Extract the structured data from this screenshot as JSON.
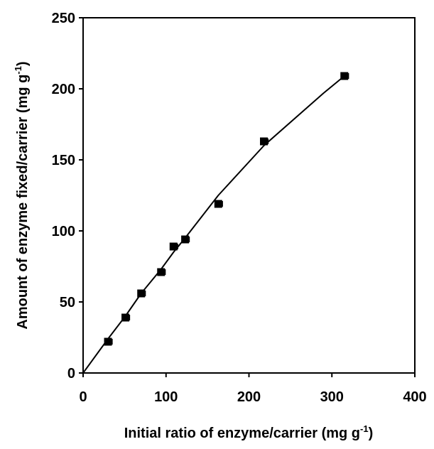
{
  "chart_data": {
    "type": "scatter",
    "xlabel": {
      "main": "Initial ratio of enzyme/carrier (mg g",
      "superscript": "-1",
      "close": ")"
    },
    "ylabel": {
      "main": "Amount of enzyme fixed/carrier (mg g",
      "superscript": "-1",
      "close": ")"
    },
    "xlim": [
      0,
      400
    ],
    "ylim": [
      0,
      250
    ],
    "xticks": [
      0,
      100,
      200,
      300,
      400
    ],
    "yticks": [
      0,
      50,
      100,
      150,
      200,
      250
    ],
    "grid": false,
    "legend": "none",
    "series": [
      {
        "marker": "filled-square",
        "points": [
          {
            "x": 30,
            "y": 22,
            "xerr": 5
          },
          {
            "x": 51,
            "y": 39,
            "xerr": 5
          },
          {
            "x": 70,
            "y": 56,
            "xerr": 5
          },
          {
            "x": 94,
            "y": 71,
            "xerr": 5
          },
          {
            "x": 109,
            "y": 89,
            "xerr": 5
          },
          {
            "x": 123,
            "y": 94,
            "xerr": 5
          },
          {
            "x": 163,
            "y": 119,
            "xerr": 5
          },
          {
            "x": 218,
            "y": 163,
            "xerr": 5
          },
          {
            "x": 315,
            "y": 209,
            "xerr": 5
          }
        ]
      }
    ],
    "trend_line": {
      "x": [
        0,
        30,
        51,
        70,
        94,
        109,
        123,
        163,
        218,
        290,
        315
      ],
      "y": [
        0,
        24,
        40,
        56,
        73,
        85,
        95,
        125,
        160,
        197,
        209
      ]
    },
    "colors": {
      "axis": "#000000",
      "marker": "#000000",
      "line": "#000000"
    }
  }
}
